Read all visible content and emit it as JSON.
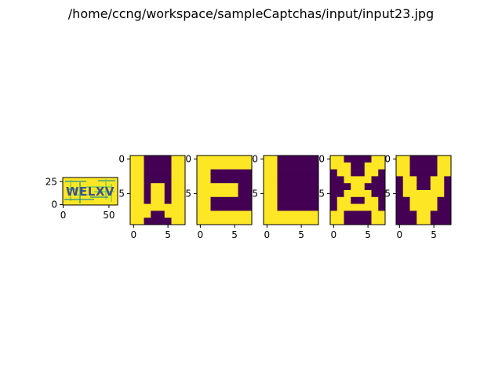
{
  "figure": {
    "title": "/home/ccng/workspace/sampleCaptchas/input/input23.jpg"
  },
  "colors": {
    "yellow": "#fde725",
    "purple": "#440154",
    "teal": "#21918c",
    "green": "#5ec962",
    "blue": "#3b528b",
    "dark_blue": "#31688e"
  },
  "chart_data": [
    {
      "type": "heatmap",
      "name": "original-captcha",
      "text": "WELXV",
      "shape": [
        30,
        60
      ],
      "x_ticks": [
        {
          "value": 0,
          "label": "0"
        },
        {
          "value": 50,
          "label": "50"
        }
      ],
      "y_ticks": [
        {
          "value": 0,
          "label": "0"
        },
        {
          "value": 25,
          "label": "25"
        }
      ],
      "xlim": [
        -0.5,
        59.5
      ],
      "ylim": [
        29.5,
        -0.5
      ]
    },
    {
      "type": "heatmap",
      "name": "segment-W",
      "shape": [
        10,
        8
      ],
      "x_ticks": [
        {
          "value": 0,
          "label": "0"
        },
        {
          "value": 5,
          "label": "5"
        }
      ],
      "y_ticks": [
        {
          "value": 0,
          "label": "0"
        },
        {
          "value": 5,
          "label": "5"
        }
      ],
      "grid": [
        [
          1,
          1,
          0,
          0,
          0,
          0,
          1,
          1
        ],
        [
          1,
          1,
          0,
          0,
          0,
          0,
          1,
          1
        ],
        [
          1,
          1,
          0,
          0,
          0,
          0,
          1,
          1
        ],
        [
          1,
          1,
          0,
          0,
          0,
          0,
          1,
          1
        ],
        [
          1,
          1,
          0,
          1,
          1,
          0,
          1,
          1
        ],
        [
          1,
          1,
          0,
          1,
          1,
          0,
          1,
          1
        ],
        [
          1,
          1,
          0,
          1,
          1,
          0,
          1,
          1
        ],
        [
          1,
          1,
          1,
          1,
          1,
          1,
          1,
          1
        ],
        [
          1,
          1,
          1,
          0,
          0,
          1,
          1,
          1
        ],
        [
          1,
          1,
          0,
          0,
          0,
          0,
          1,
          1
        ]
      ]
    },
    {
      "type": "heatmap",
      "name": "segment-E",
      "shape": [
        10,
        8
      ],
      "x_ticks": [
        {
          "value": 0,
          "label": "0"
        },
        {
          "value": 5,
          "label": "5"
        }
      ],
      "y_ticks": [
        {
          "value": 0,
          "label": "0"
        },
        {
          "value": 5,
          "label": "5"
        }
      ],
      "grid": [
        [
          1,
          1,
          1,
          1,
          1,
          1,
          1,
          1
        ],
        [
          1,
          1,
          1,
          1,
          1,
          1,
          1,
          1
        ],
        [
          1,
          1,
          0,
          0,
          0,
          0,
          0,
          0
        ],
        [
          1,
          1,
          0,
          0,
          0,
          0,
          0,
          0
        ],
        [
          1,
          1,
          1,
          1,
          1,
          1,
          0,
          0
        ],
        [
          1,
          1,
          1,
          1,
          1,
          1,
          0,
          0
        ],
        [
          1,
          1,
          0,
          0,
          0,
          0,
          0,
          0
        ],
        [
          1,
          1,
          0,
          0,
          0,
          0,
          0,
          0
        ],
        [
          1,
          1,
          1,
          1,
          1,
          1,
          1,
          1
        ],
        [
          1,
          1,
          1,
          1,
          1,
          1,
          1,
          1
        ]
      ]
    },
    {
      "type": "heatmap",
      "name": "segment-L",
      "shape": [
        10,
        8
      ],
      "x_ticks": [
        {
          "value": 0,
          "label": "0"
        },
        {
          "value": 5,
          "label": "5"
        }
      ],
      "y_ticks": [
        {
          "value": 0,
          "label": "0"
        },
        {
          "value": 5,
          "label": "5"
        }
      ],
      "grid": [
        [
          1,
          1,
          0,
          0,
          0,
          0,
          0,
          0
        ],
        [
          1,
          1,
          0,
          0,
          0,
          0,
          0,
          0
        ],
        [
          1,
          1,
          0,
          0,
          0,
          0,
          0,
          0
        ],
        [
          1,
          1,
          0,
          0,
          0,
          0,
          0,
          0
        ],
        [
          1,
          1,
          0,
          0,
          0,
          0,
          0,
          0
        ],
        [
          1,
          1,
          0,
          0,
          0,
          0,
          0,
          0
        ],
        [
          1,
          1,
          0,
          0,
          0,
          0,
          0,
          0
        ],
        [
          1,
          1,
          0,
          0,
          0,
          0,
          0,
          0
        ],
        [
          1,
          1,
          1,
          1,
          1,
          1,
          1,
          1
        ],
        [
          1,
          1,
          1,
          1,
          1,
          1,
          1,
          1
        ]
      ]
    },
    {
      "type": "heatmap",
      "name": "segment-X",
      "shape": [
        10,
        8
      ],
      "x_ticks": [
        {
          "value": 0,
          "label": "0"
        },
        {
          "value": 5,
          "label": "5"
        }
      ],
      "y_ticks": [
        {
          "value": 0,
          "label": "0"
        },
        {
          "value": 5,
          "label": "5"
        }
      ],
      "grid": [
        [
          1,
          1,
          0,
          0,
          0,
          0,
          1,
          1
        ],
        [
          1,
          1,
          1,
          0,
          0,
          1,
          1,
          1
        ],
        [
          0,
          1,
          1,
          0,
          0,
          1,
          1,
          0
        ],
        [
          0,
          0,
          1,
          1,
          1,
          1,
          0,
          0
        ],
        [
          0,
          0,
          0,
          1,
          1,
          0,
          0,
          0
        ],
        [
          0,
          0,
          1,
          1,
          1,
          1,
          0,
          0
        ],
        [
          0,
          1,
          1,
          0,
          0,
          1,
          1,
          0
        ],
        [
          0,
          1,
          1,
          1,
          1,
          1,
          1,
          0
        ],
        [
          1,
          1,
          0,
          0,
          0,
          0,
          1,
          1
        ],
        [
          1,
          1,
          0,
          0,
          0,
          0,
          1,
          1
        ]
      ]
    },
    {
      "type": "heatmap",
      "name": "segment-V",
      "shape": [
        10,
        8
      ],
      "x_ticks": [
        {
          "value": 0,
          "label": "0"
        },
        {
          "value": 5,
          "label": "5"
        }
      ],
      "y_ticks": [
        {
          "value": 0,
          "label": "0"
        },
        {
          "value": 5,
          "label": "5"
        }
      ],
      "grid": [
        [
          1,
          1,
          0,
          0,
          0,
          0,
          1,
          1
        ],
        [
          1,
          1,
          0,
          0,
          0,
          0,
          1,
          1
        ],
        [
          1,
          1,
          0,
          0,
          0,
          0,
          1,
          1
        ],
        [
          0,
          1,
          1,
          0,
          0,
          1,
          1,
          0
        ],
        [
          0,
          1,
          1,
          0,
          0,
          1,
          1,
          0
        ],
        [
          0,
          1,
          1,
          1,
          1,
          1,
          1,
          0
        ],
        [
          0,
          0,
          1,
          1,
          1,
          1,
          0,
          0
        ],
        [
          0,
          0,
          1,
          1,
          1,
          1,
          0,
          0
        ],
        [
          0,
          0,
          0,
          1,
          1,
          0,
          0,
          0
        ],
        [
          0,
          0,
          0,
          1,
          1,
          0,
          0,
          0
        ]
      ]
    }
  ]
}
